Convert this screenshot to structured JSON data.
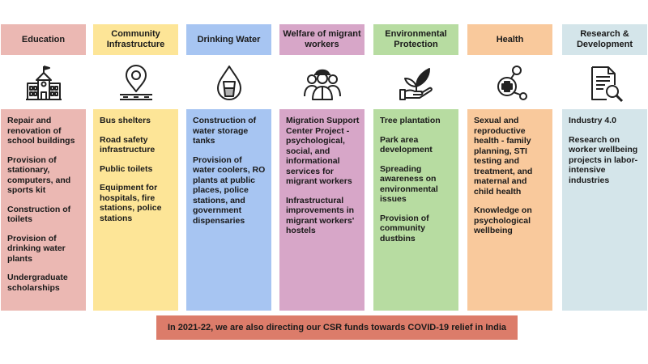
{
  "columns": [
    {
      "key": "education",
      "title": "Education",
      "icon": "school-building-icon",
      "color": "#ebb8b3",
      "items": [
        "Repair and renovation of school buildings",
        "Provision of stationary, computers, and sports kit",
        "Construction of toilets",
        "Provision of drinking water plants",
        "Undergraduate scholarships"
      ]
    },
    {
      "key": "community",
      "title": "Community Infrastructure",
      "icon": "location-pin-icon",
      "color": "#fde597",
      "items": [
        "Bus shelters",
        "Road safety infrastructure",
        "Public toilets",
        "Equipment for hospitals, fire stations, police stations"
      ]
    },
    {
      "key": "water",
      "title": "Drinking Water",
      "icon": "water-drop-glass-icon",
      "color": "#a7c5f2",
      "items": [
        "Construction of water storage tanks",
        "Provision of water coolers, RO plants at public places, police stations, and government dispensaries"
      ]
    },
    {
      "key": "migrant",
      "title": "Welfare of migrant workers",
      "icon": "worker-group-icon",
      "color": "#d7a6c8",
      "items": [
        "Migration Support Center Project - psychological, social, and informational services for migrant workers",
        "Infrastructural improvements in migrant workers' hostels"
      ]
    },
    {
      "key": "environment",
      "title": "Environmental Protection",
      "icon": "hand-sprout-icon",
      "color": "#b7dca1",
      "items": [
        "Tree plantation",
        "Park area development",
        "Spreading awareness on environmental issues",
        "Provision of community dustbins"
      ]
    },
    {
      "key": "health",
      "title": "Health",
      "icon": "health-network-icon",
      "color": "#f9c99c",
      "items": [
        "Sexual and reproductive health - family planning, STI testing and treatment, and maternal and child health",
        "Knowledge on psychological wellbeing"
      ]
    },
    {
      "key": "research",
      "title": "Research & Development",
      "icon": "document-search-icon",
      "color": "#d4e5ea",
      "items": [
        "Industry 4.0",
        "Research on worker wellbeing projects in labor-intensive industries"
      ]
    }
  ],
  "footer": "In 2021-22, we are also directing our CSR funds towards COVID-19 relief in India"
}
